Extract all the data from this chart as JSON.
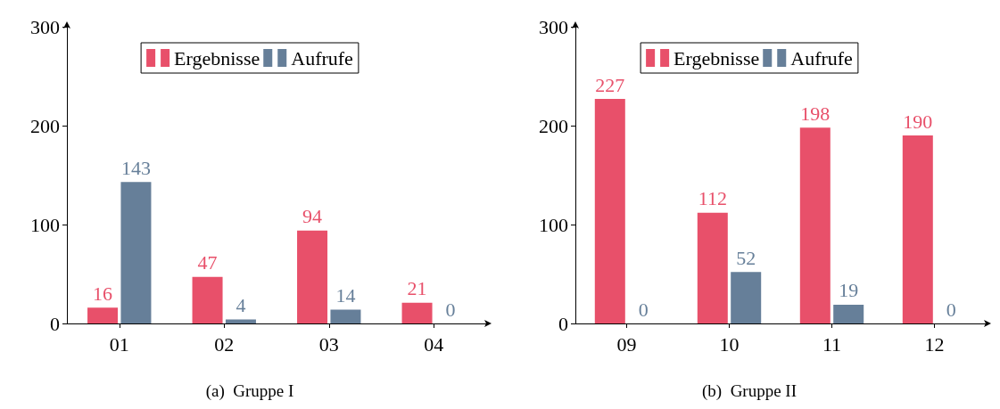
{
  "chart_data": [
    {
      "type": "bar",
      "title": "(a)  Gruppe I",
      "categories": [
        "01",
        "02",
        "03",
        "04"
      ],
      "series": [
        {
          "name": "Ergebnisse",
          "color": "#e8506a",
          "values": [
            16,
            47,
            94,
            21
          ]
        },
        {
          "name": "Aufrufe",
          "color": "#667f99",
          "values": [
            143,
            4,
            14,
            0
          ]
        }
      ],
      "ylim": [
        0,
        300
      ],
      "yticks": [
        0,
        100,
        200,
        300
      ],
      "data_labels": true,
      "legend": "top",
      "grid": false
    },
    {
      "type": "bar",
      "title": "(b)  Gruppe II",
      "categories": [
        "09",
        "10",
        "11",
        "12"
      ],
      "series": [
        {
          "name": "Ergebnisse",
          "color": "#e8506a",
          "values": [
            227,
            112,
            198,
            190
          ]
        },
        {
          "name": "Aufrufe",
          "color": "#667f99",
          "values": [
            0,
            52,
            19,
            0
          ]
        }
      ],
      "ylim": [
        0,
        300
      ],
      "yticks": [
        0,
        100,
        200,
        300
      ],
      "data_labels": true,
      "legend": "top",
      "grid": false
    }
  ]
}
